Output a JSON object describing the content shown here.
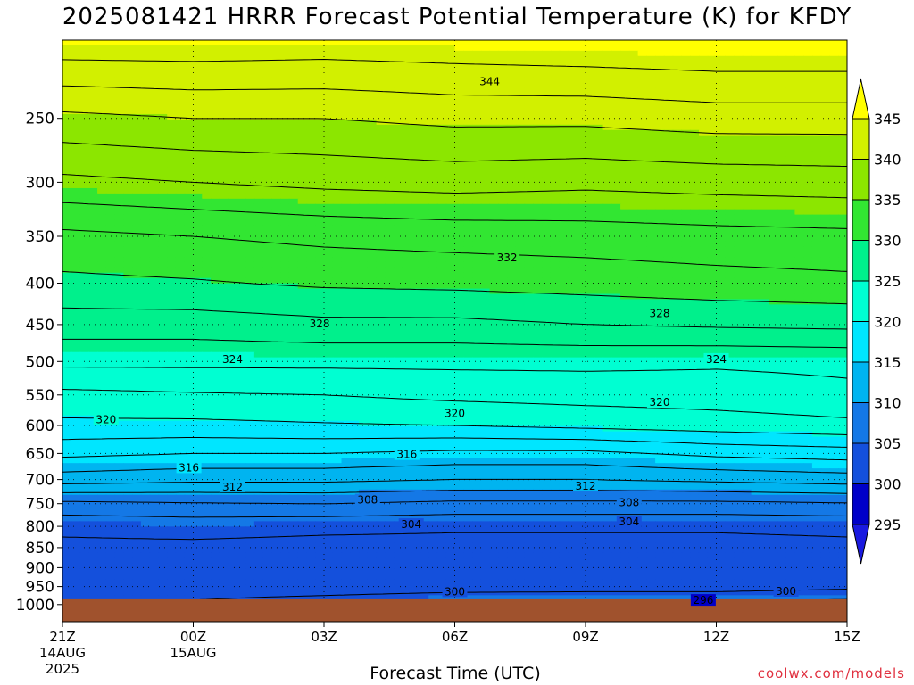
{
  "chart_data": {
    "type": "heatmap",
    "title": "2025081421 HRRR Forecast Potential Temperature (K) for KFDY",
    "xlabel": "Forecast Time (UTC)",
    "ylabel": "",
    "credit": "coolwx.com/models",
    "x_ticks": [
      {
        "label": "21Z",
        "sub1": "14AUG",
        "sub2": "2025",
        "hour": 0
      },
      {
        "label": "00Z",
        "sub1": "15AUG",
        "sub2": "",
        "hour": 3
      },
      {
        "label": "03Z",
        "sub1": "",
        "sub2": "",
        "hour": 6
      },
      {
        "label": "06Z",
        "sub1": "",
        "sub2": "",
        "hour": 9
      },
      {
        "label": "09Z",
        "sub1": "",
        "sub2": "",
        "hour": 12
      },
      {
        "label": "12Z",
        "sub1": "",
        "sub2": "",
        "hour": 15
      },
      {
        "label": "15Z",
        "sub1": "",
        "sub2": "",
        "hour": 18
      }
    ],
    "xlim": [
      0,
      18
    ],
    "y_scale": "log-pressure",
    "ylim_hpa": [
      1050,
      200
    ],
    "y_ticks": [
      250,
      300,
      350,
      400,
      450,
      500,
      550,
      600,
      650,
      700,
      750,
      800,
      850,
      900,
      950,
      1000
    ],
    "colorbar": {
      "ticks": [
        295,
        300,
        305,
        310,
        315,
        320,
        325,
        330,
        335,
        340,
        345
      ],
      "levels": [
        295,
        300,
        305,
        310,
        315,
        320,
        325,
        330,
        335,
        340,
        345
      ],
      "colors": [
        "#1a1ae0",
        "#0000c8",
        "#1450dc",
        "#1478e6",
        "#00b4f0",
        "#00e6ff",
        "#00ffd2",
        "#00f08c",
        "#32e632",
        "#8ce600",
        "#d2f000",
        "#ffff00"
      ],
      "extend": "both"
    },
    "ground_color": "#a0522d",
    "ground_below_hpa": 985,
    "contour_interval": 2,
    "contour_labels": [
      {
        "text": "344",
        "hour": 9.8,
        "p": 225
      },
      {
        "text": "332",
        "hour": 10.2,
        "p": 372
      },
      {
        "text": "328",
        "hour": 5.9,
        "p": 449
      },
      {
        "text": "328",
        "hour": 13.7,
        "p": 436
      },
      {
        "text": "324",
        "hour": 3.9,
        "p": 497
      },
      {
        "text": "324",
        "hour": 15.0,
        "p": 497
      },
      {
        "text": "320",
        "hour": 1.0,
        "p": 590
      },
      {
        "text": "320",
        "hour": 9.0,
        "p": 580
      },
      {
        "text": "320",
        "hour": 13.7,
        "p": 562
      },
      {
        "text": "316",
        "hour": 2.9,
        "p": 677
      },
      {
        "text": "316",
        "hour": 7.9,
        "p": 652
      },
      {
        "text": "312",
        "hour": 3.9,
        "p": 715
      },
      {
        "text": "312",
        "hour": 12.0,
        "p": 713
      },
      {
        "text": "308",
        "hour": 7.0,
        "p": 742
      },
      {
        "text": "308",
        "hour": 13.0,
        "p": 748
      },
      {
        "text": "304",
        "hour": 8.0,
        "p": 796
      },
      {
        "text": "304",
        "hour": 13.0,
        "p": 790
      },
      {
        "text": "300",
        "hour": 9.0,
        "p": 964
      },
      {
        "text": "300",
        "hour": 16.6,
        "p": 963
      },
      {
        "text": "296",
        "hour": 14.7,
        "p": 988
      }
    ],
    "profile": {
      "pressures": [
        1000,
        950,
        900,
        850,
        800,
        750,
        700,
        650,
        600,
        550,
        500,
        450,
        400,
        350,
        300,
        250,
        200
      ],
      "hours": [
        0,
        3,
        6,
        9,
        12,
        15,
        18
      ],
      "theta": [
        [
          303.5,
          304.5,
          305.5,
          306.5,
          306.5,
          306.5,
          307.0
        ],
        [
          303.0,
          302.5,
          302.5,
          302.8,
          303.0,
          303.0,
          303.5
        ],
        [
          303.2,
          303.0,
          302.8,
          302.8,
          302.8,
          302.8,
          303.2
        ],
        [
          303.5,
          303.5,
          303.3,
          303.3,
          303.3,
          303.3,
          303.5
        ],
        [
          304.5,
          304.8,
          304.5,
          304.3,
          304.3,
          304.3,
          304.5
        ],
        [
          307.5,
          307.8,
          308.0,
          307.5,
          307.5,
          307.5,
          307.8
        ],
        [
          313.0,
          312.5,
          312.5,
          312.0,
          312.0,
          312.5,
          313.0
        ],
        [
          316.5,
          316.0,
          316.0,
          315.5,
          315.5,
          316.5,
          317.0
        ],
        [
          319.5,
          319.5,
          319.8,
          320.0,
          320.5,
          321.0,
          321.5
        ],
        [
          321.5,
          321.8,
          322.0,
          322.5,
          322.8,
          323.0,
          323.5
        ],
        [
          324.5,
          324.5,
          324.5,
          324.5,
          324.5,
          324.3,
          324.5
        ],
        [
          327.0,
          327.0,
          327.5,
          327.5,
          328.0,
          328.3,
          328.5
        ],
        [
          329.5,
          329.8,
          330.3,
          330.5,
          330.8,
          331.2,
          331.5
        ],
        [
          331.5,
          332.0,
          332.5,
          332.8,
          333.0,
          333.3,
          333.5
        ],
        [
          335.5,
          336.0,
          336.5,
          336.8,
          336.5,
          336.8,
          337.0
        ],
        [
          339.5,
          340.0,
          340.0,
          340.5,
          340.5,
          341.0,
          341.0
        ],
        [
          345.5,
          345.5,
          345.3,
          345.5,
          345.8,
          346.0,
          346.0
        ]
      ]
    }
  }
}
